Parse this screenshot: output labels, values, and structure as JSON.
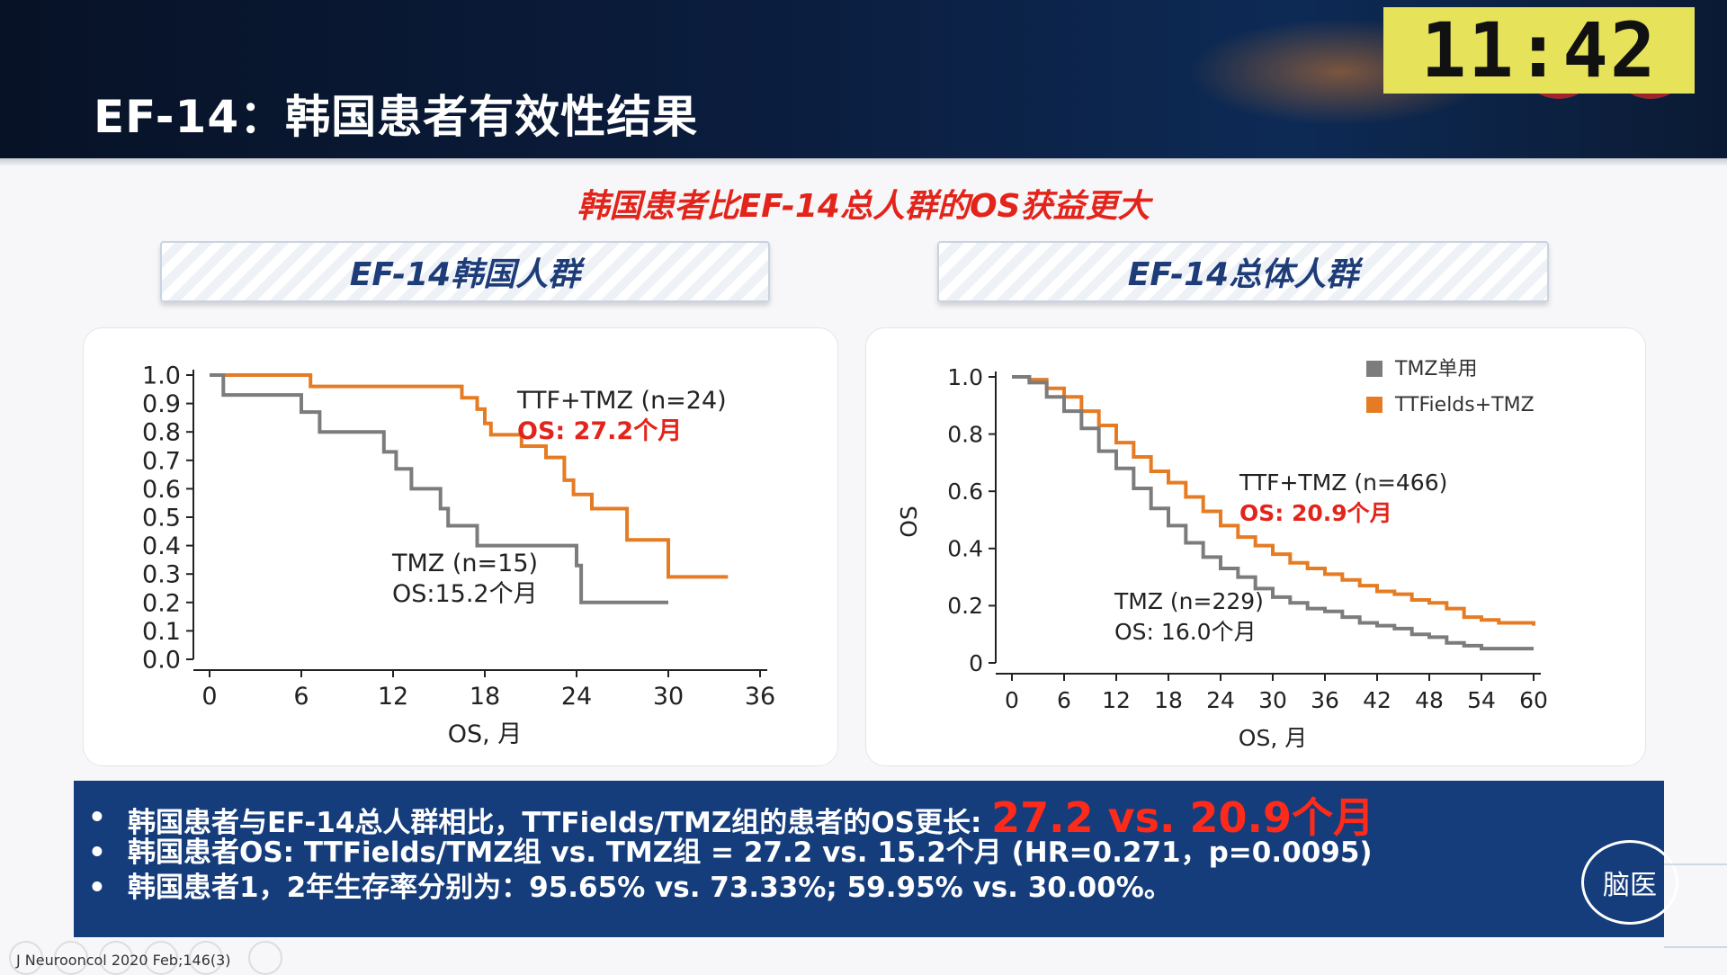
{
  "header": {
    "title": "EF-14：韩国患者有效性结果",
    "clock": "11:42"
  },
  "headline": "韩国患者比EF-14总人群的OS获益更大",
  "left_banner": "EF-14韩国人群",
  "right_banner": "EF-14总体人群",
  "colors": {
    "ttf_orange": "#e57c24",
    "tmz_gray": "#7c7c7c",
    "red_text": "#e3241b",
    "navy": "#153d7c"
  },
  "chart_data": [
    {
      "type": "line",
      "step": true,
      "xlabel": "OS, 月",
      "ylabel": "",
      "xticks": [
        0,
        6,
        12,
        18,
        24,
        30,
        36
      ],
      "yticks": [
        "0.0",
        "0.1",
        "0.2",
        "0.3",
        "0.4",
        "0.5",
        "0.6",
        "0.7",
        "0.8",
        "0.9",
        "1.0"
      ],
      "xlim": [
        0,
        36
      ],
      "ylim": [
        0,
        1
      ],
      "series": [
        {
          "label": "TTF+TMZ (n=24)",
          "os": "OS: 27.2个月",
          "color": "#e57c24",
          "points": [
            [
              0,
              1.0
            ],
            [
              6.6,
              1.0
            ],
            [
              6.6,
              0.96
            ],
            [
              16.5,
              0.96
            ],
            [
              16.5,
              0.92
            ],
            [
              17.5,
              0.92
            ],
            [
              17.5,
              0.88
            ],
            [
              18,
              0.88
            ],
            [
              18,
              0.83
            ],
            [
              18.4,
              0.83
            ],
            [
              18.4,
              0.79
            ],
            [
              20.4,
              0.79
            ],
            [
              20.4,
              0.75
            ],
            [
              22,
              0.75
            ],
            [
              22,
              0.71
            ],
            [
              23.2,
              0.71
            ],
            [
              23.2,
              0.63
            ],
            [
              23.8,
              0.63
            ],
            [
              23.8,
              0.58
            ],
            [
              25,
              0.58
            ],
            [
              25,
              0.53
            ],
            [
              27.3,
              0.53
            ],
            [
              27.3,
              0.42
            ],
            [
              30,
              0.42
            ],
            [
              30,
              0.29
            ],
            [
              33.9,
              0.29
            ]
          ]
        },
        {
          "label": "TMZ (n=15)",
          "os": "OS:15.2个月",
          "color": "#7c7c7c",
          "points": [
            [
              0,
              1.0
            ],
            [
              0.9,
              1.0
            ],
            [
              0.9,
              0.93
            ],
            [
              6,
              0.93
            ],
            [
              6,
              0.87
            ],
            [
              7.2,
              0.87
            ],
            [
              7.2,
              0.8
            ],
            [
              11.4,
              0.8
            ],
            [
              11.4,
              0.73
            ],
            [
              12.2,
              0.73
            ],
            [
              12.2,
              0.67
            ],
            [
              13.2,
              0.67
            ],
            [
              13.2,
              0.6
            ],
            [
              15.1,
              0.6
            ],
            [
              15.1,
              0.53
            ],
            [
              15.6,
              0.53
            ],
            [
              15.6,
              0.47
            ],
            [
              17.5,
              0.47
            ],
            [
              17.5,
              0.4
            ],
            [
              24,
              0.4
            ],
            [
              24,
              0.33
            ],
            [
              24.3,
              0.33
            ],
            [
              24.3,
              0.2
            ],
            [
              30,
              0.2
            ]
          ]
        }
      ]
    },
    {
      "type": "line",
      "step": true,
      "xlabel": "OS, 月",
      "ylabel": "OS",
      "xticks": [
        0,
        6,
        12,
        18,
        24,
        30,
        36,
        42,
        48,
        54,
        60
      ],
      "yticks": [
        "0",
        "0.2",
        "0.4",
        "0.6",
        "0.8",
        "1.0"
      ],
      "xlim": [
        0,
        60
      ],
      "ylim": [
        0,
        1
      ],
      "legend": {
        "position": "top-right",
        "entries": [
          {
            "label": "TMZ单用",
            "color": "#7c7c7c"
          },
          {
            "label": "TTFields+TMZ",
            "color": "#e57c24"
          }
        ]
      },
      "series": [
        {
          "label": "TTF+TMZ (n=466)",
          "os": "OS: 20.9个月",
          "color": "#e57c24",
          "points": [
            [
              0,
              1.0
            ],
            [
              2,
              0.99
            ],
            [
              4,
              0.96
            ],
            [
              6,
              0.93
            ],
            [
              8,
              0.88
            ],
            [
              10,
              0.83
            ],
            [
              12,
              0.77
            ],
            [
              14,
              0.72
            ],
            [
              16,
              0.67
            ],
            [
              18,
              0.63
            ],
            [
              20,
              0.58
            ],
            [
              22,
              0.53
            ],
            [
              24,
              0.48
            ],
            [
              26,
              0.44
            ],
            [
              28,
              0.41
            ],
            [
              30,
              0.38
            ],
            [
              32,
              0.35
            ],
            [
              34,
              0.33
            ],
            [
              36,
              0.31
            ],
            [
              38,
              0.29
            ],
            [
              40,
              0.27
            ],
            [
              42,
              0.25
            ],
            [
              44,
              0.24
            ],
            [
              46,
              0.22
            ],
            [
              48,
              0.21
            ],
            [
              50,
              0.19
            ],
            [
              52,
              0.16
            ],
            [
              54,
              0.15
            ],
            [
              56,
              0.14
            ],
            [
              60,
              0.13
            ]
          ]
        },
        {
          "label": "TMZ (n=229)",
          "os": "OS: 16.0个月",
          "color": "#7c7c7c",
          "points": [
            [
              0,
              1.0
            ],
            [
              2,
              0.98
            ],
            [
              4,
              0.93
            ],
            [
              6,
              0.88
            ],
            [
              8,
              0.82
            ],
            [
              10,
              0.74
            ],
            [
              12,
              0.68
            ],
            [
              14,
              0.61
            ],
            [
              16,
              0.54
            ],
            [
              18,
              0.48
            ],
            [
              20,
              0.42
            ],
            [
              22,
              0.37
            ],
            [
              24,
              0.33
            ],
            [
              26,
              0.3
            ],
            [
              28,
              0.26
            ],
            [
              30,
              0.23
            ],
            [
              32,
              0.21
            ],
            [
              34,
              0.19
            ],
            [
              36,
              0.18
            ],
            [
              38,
              0.16
            ],
            [
              40,
              0.14
            ],
            [
              42,
              0.13
            ],
            [
              44,
              0.12
            ],
            [
              46,
              0.1
            ],
            [
              48,
              0.09
            ],
            [
              50,
              0.07
            ],
            [
              52,
              0.06
            ],
            [
              54,
              0.05
            ],
            [
              56,
              0.05
            ],
            [
              60,
              0.05
            ]
          ]
        }
      ]
    }
  ],
  "summary": {
    "b1_text": "韩国患者与EF-14总人群相比，TTFields/TMZ组的患者的OS更长: ",
    "b1_highlight": "27.2 vs. 20.9个月",
    "b2": "韩国患者OS: TTFields/TMZ组 vs. TMZ组 = 27.2 vs. 15.2个月 (HR=0.271，p=0.0095)",
    "b3": "韩国患者1，2年生存率分别为：95.65% vs. 73.33%; 59.95% vs. 30.00%。"
  },
  "logo": "脑医",
  "citation": "J Neurooncol 2020 Feb;146(3)"
}
